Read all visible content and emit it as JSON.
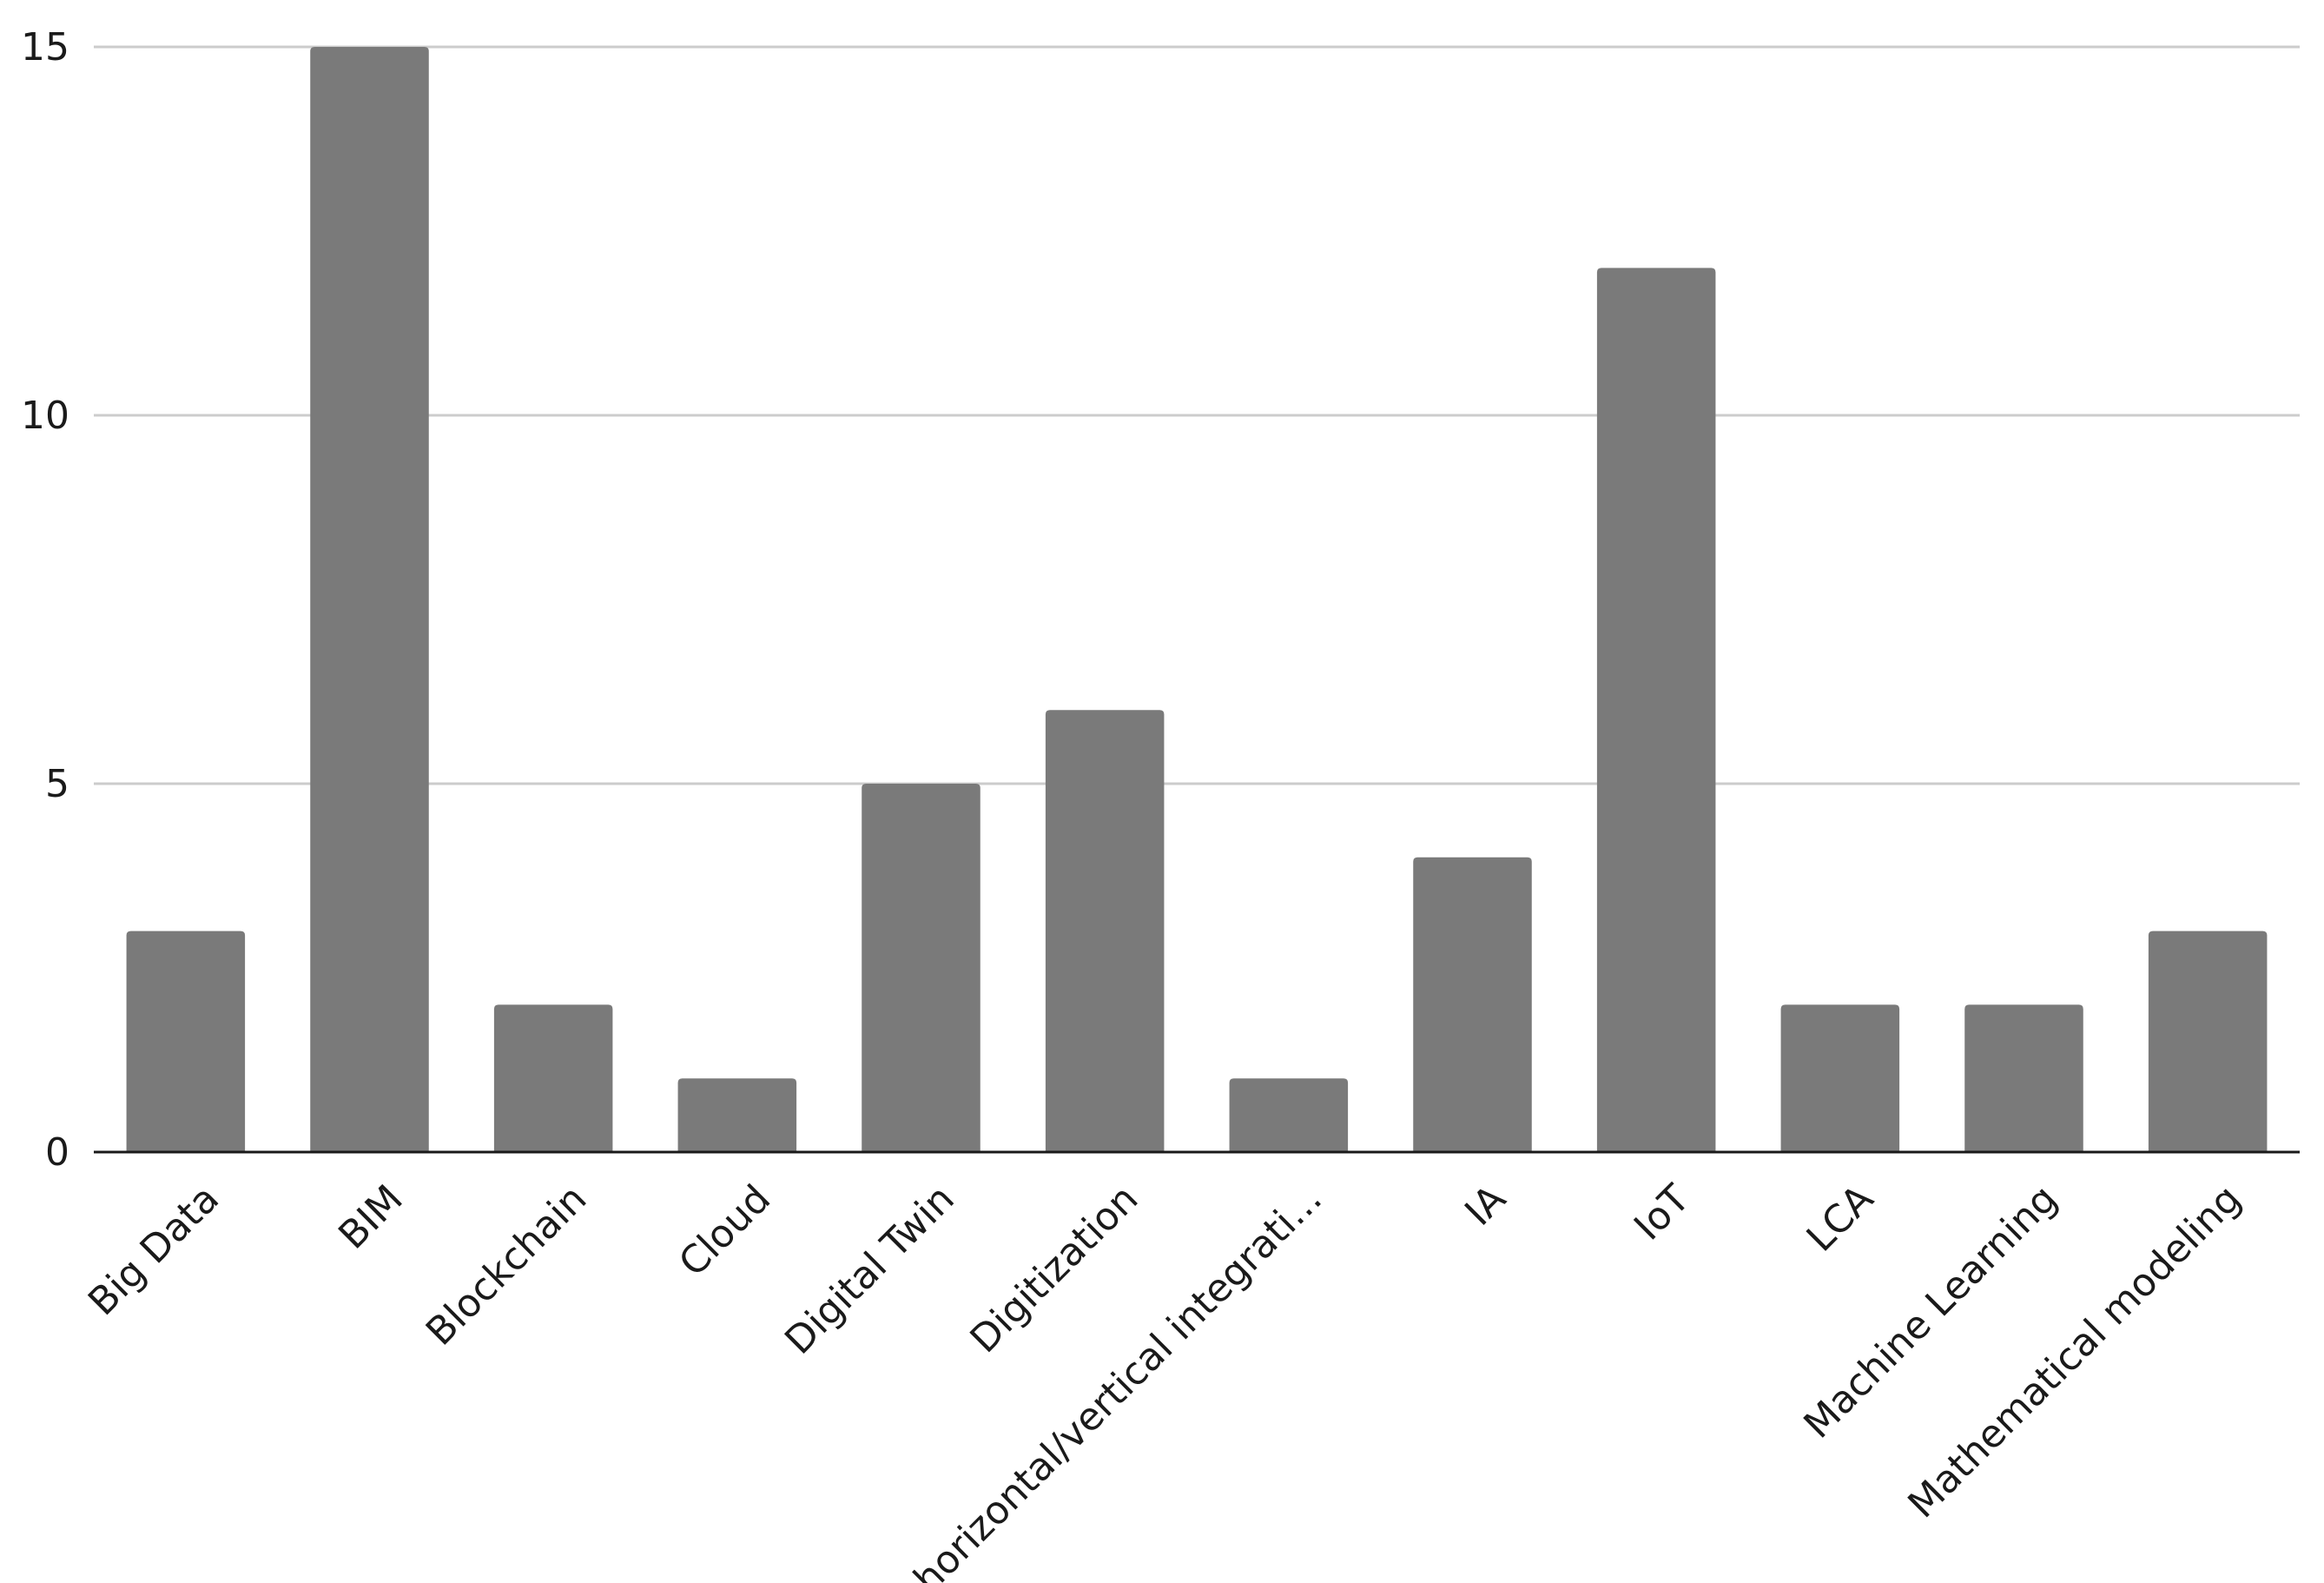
{
  "chart_data": {
    "type": "bar",
    "title": "",
    "xlabel": "",
    "ylabel": "",
    "categories": [
      "Big Data",
      "BIM",
      "Blockchain",
      "Cloud",
      "Digital Twin",
      "Digitization",
      "horizontal/vertical integrati...",
      "IA",
      "IoT",
      "LCA",
      "Machine Learning",
      "Mathematical modeling"
    ],
    "values": [
      3,
      15,
      2,
      1,
      5,
      6,
      1,
      4,
      12,
      2,
      2,
      3
    ],
    "ylim": [
      0,
      15
    ],
    "yticks": [
      0,
      5,
      10,
      15
    ],
    "grid": true,
    "legend": "none",
    "colors": {
      "bar": "#7a7a7a",
      "gridline": "#cccccc",
      "axis": "#1a1a1a",
      "text": "#1a1a1a"
    }
  }
}
